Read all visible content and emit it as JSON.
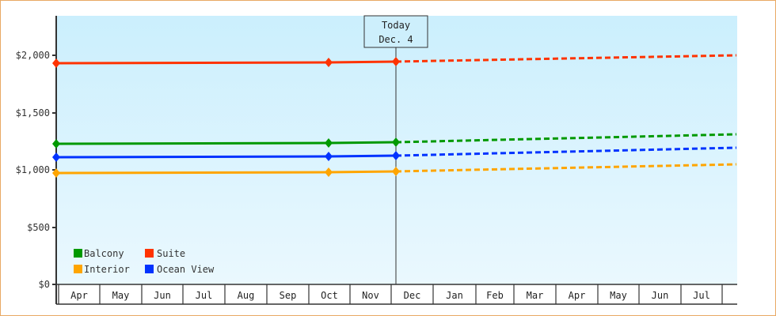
{
  "chart_data": {
    "type": "line",
    "title": "",
    "xlabel": "",
    "ylabel": "",
    "ylim": [
      0,
      2350
    ],
    "y_ticks": [
      "$0",
      "$500",
      "$1,000",
      "$1,500",
      "$2,000"
    ],
    "categories": [
      "Apr",
      "May",
      "Jun",
      "Jul",
      "Aug",
      "Sep",
      "Oct",
      "Nov",
      "Dec",
      "Jan",
      "Feb",
      "Mar",
      "Apr",
      "May",
      "Jun",
      "Jul"
    ],
    "annotation": {
      "line1": "Today",
      "line2": "Dec. 4"
    },
    "legend_position": "bottom-left inside plot",
    "series": [
      {
        "name": "Balcony",
        "color": "#009900",
        "actual": [
          {
            "x": "Apr",
            "y": 1228
          },
          {
            "x": "Oct",
            "y": 1234
          },
          {
            "x": "Dec 4",
            "y": 1241
          }
        ],
        "forecast_end": {
          "x": "end Jul",
          "y": 1310
        }
      },
      {
        "name": "Suite",
        "color": "#ff3300",
        "actual": [
          {
            "x": "Apr",
            "y": 1931
          },
          {
            "x": "Oct",
            "y": 1938
          },
          {
            "x": "Dec 4",
            "y": 1945
          }
        ],
        "forecast_end": {
          "x": "end Jul",
          "y": 2000
        }
      },
      {
        "name": "Interior",
        "color": "#ffa500",
        "actual": [
          {
            "x": "Apr",
            "y": 972
          },
          {
            "x": "Oct",
            "y": 979
          },
          {
            "x": "Dec 4",
            "y": 986
          }
        ],
        "forecast_end": {
          "x": "end Jul",
          "y": 1048
        }
      },
      {
        "name": "Ocean View",
        "color": "#0033ff",
        "actual": [
          {
            "x": "Apr",
            "y": 1110
          },
          {
            "x": "Oct",
            "y": 1117
          },
          {
            "x": "Dec 4",
            "y": 1124
          }
        ],
        "forecast_end": {
          "x": "end Jul",
          "y": 1193
        }
      }
    ]
  },
  "legend": {
    "balcony": "Balcony",
    "suite": "Suite",
    "interior": "Interior",
    "ocean_view": "Ocean View"
  },
  "axis": {
    "y0": "$0",
    "y500": "$500",
    "y1000": "$1,000",
    "y1500": "$1,500",
    "y2000": "$2,000"
  },
  "months": [
    "Apr",
    "May",
    "Jun",
    "Jul",
    "Aug",
    "Sep",
    "Oct",
    "Nov",
    "Dec",
    "Jan",
    "Feb",
    "Mar",
    "Apr",
    "May",
    "Jun",
    "Jul"
  ],
  "today": {
    "line1": "Today",
    "line2": "Dec. 4"
  }
}
